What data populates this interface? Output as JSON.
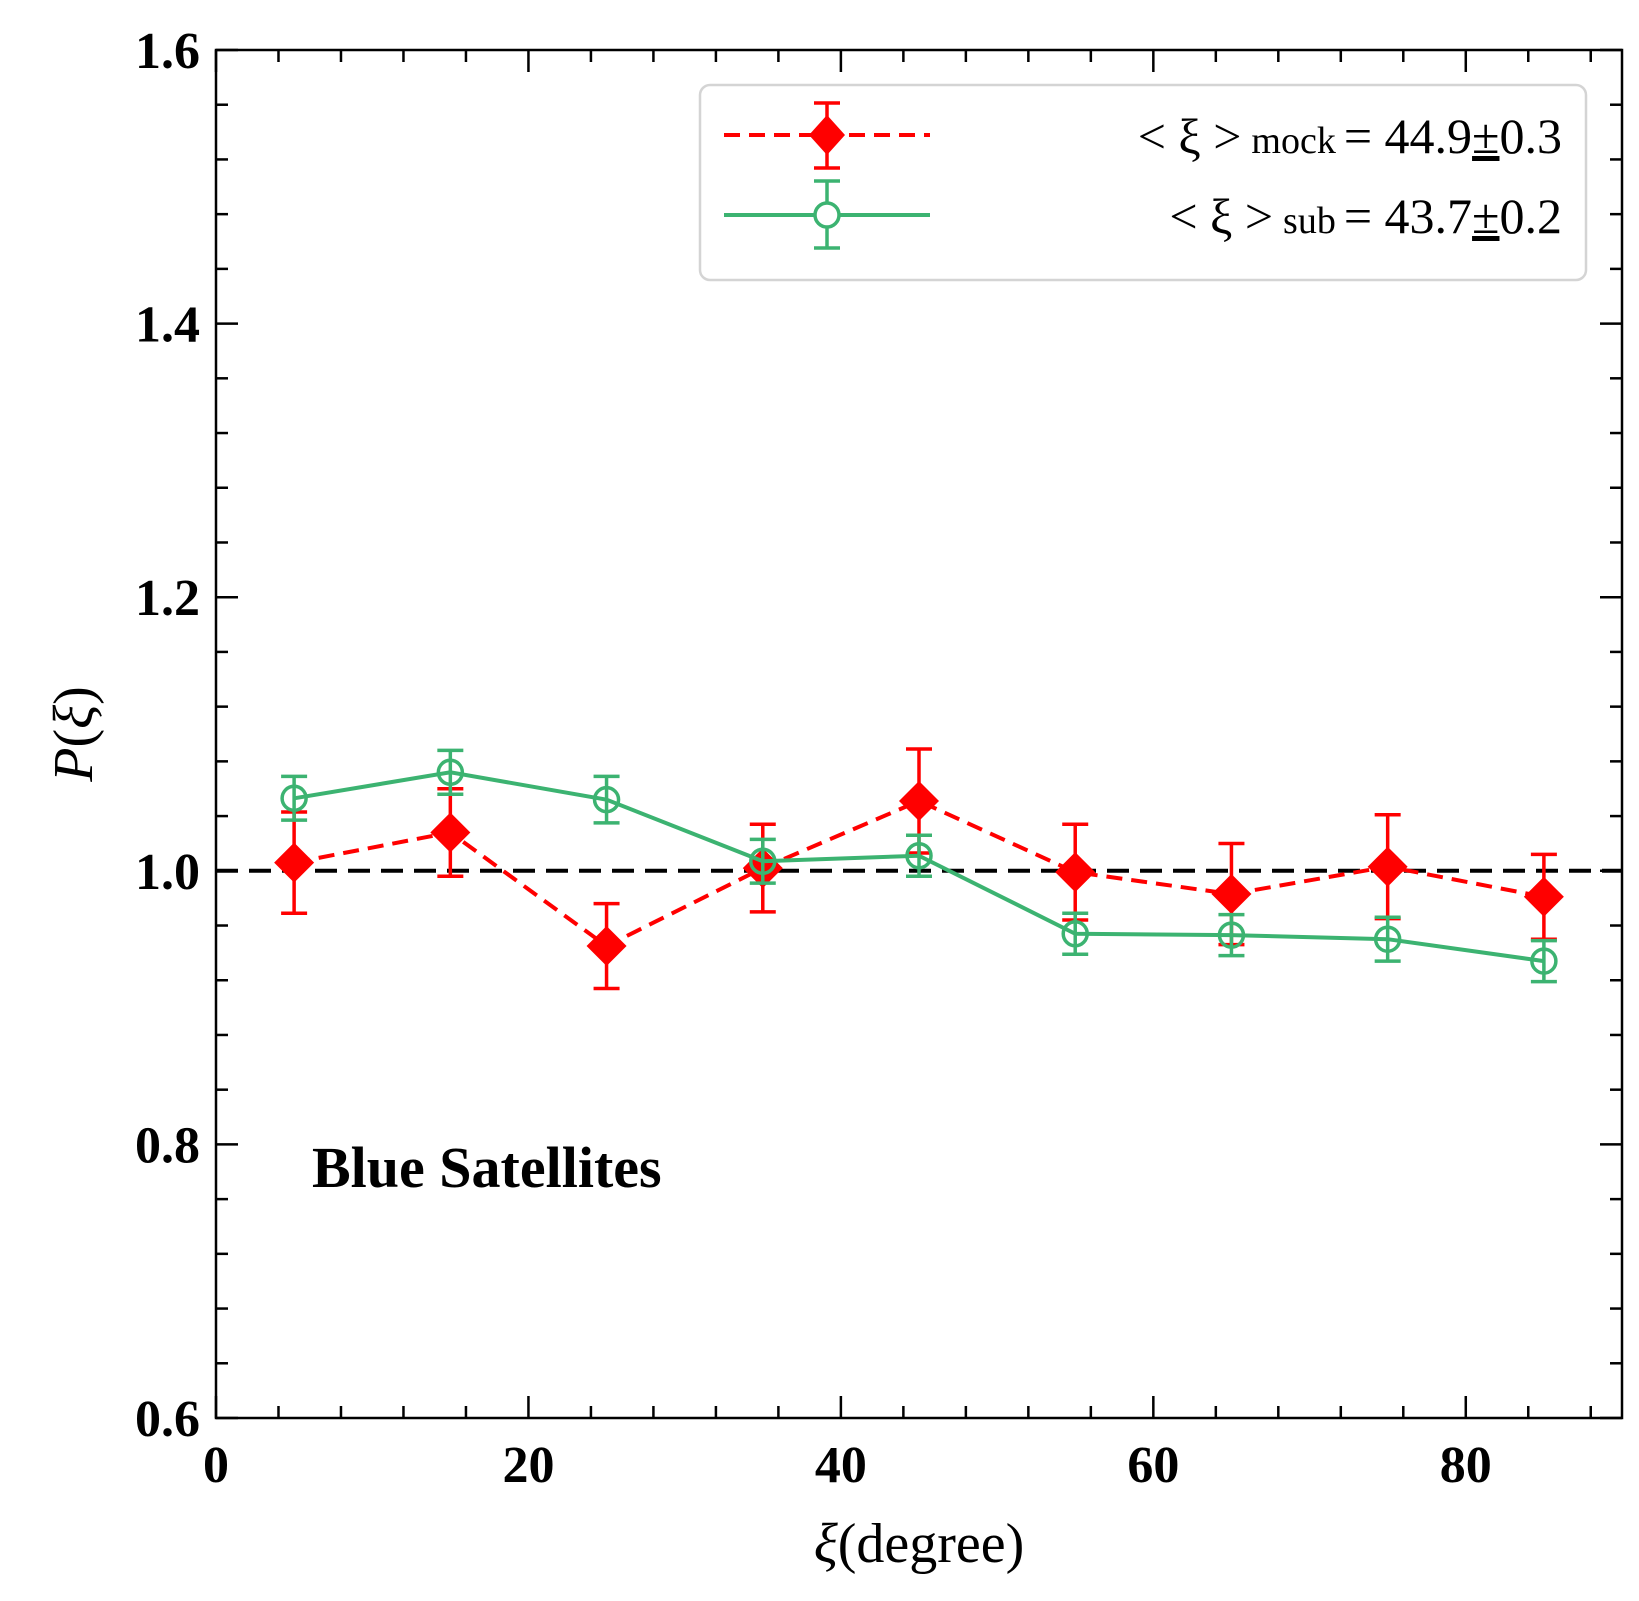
{
  "chart_data": {
    "type": "line",
    "title": "",
    "xlabel_symbol": "ξ",
    "xlabel_unit": "(degree)",
    "ylabel_symbol": "P",
    "ylabel_arg": "ξ",
    "xlim": [
      0,
      90
    ],
    "ylim": [
      0.6,
      1.6
    ],
    "x_ticks": [
      0,
      20,
      40,
      60,
      80
    ],
    "y_ticks": [
      0.6,
      0.8,
      1.0,
      1.2,
      1.4,
      1.6
    ],
    "x_tick_labels": [
      "0",
      "20",
      "40",
      "60",
      "80"
    ],
    "y_tick_labels": [
      "0.6",
      "0.8",
      "1.0",
      "1.2",
      "1.4",
      "1.6"
    ],
    "reference_line": {
      "y": 1.0,
      "color": "#000000",
      "style": "dashed"
    },
    "annotation": "Blue Satellites",
    "legend_position": "top-right",
    "x": [
      5,
      15,
      25,
      35,
      45,
      55,
      65,
      75,
      85
    ],
    "series": [
      {
        "name": "mock",
        "label_prefix": "< ξ >",
        "label_sub": "mock",
        "label_value": "= 44.9",
        "label_pm": "±",
        "label_err": "0.3",
        "color": "#ff0000",
        "line_style": "dashed",
        "marker": "filled-diamond",
        "values": [
          1.006,
          1.028,
          0.945,
          1.002,
          1.051,
          0.999,
          0.983,
          1.003,
          0.981
        ],
        "errors": [
          0.037,
          0.032,
          0.031,
          0.032,
          0.038,
          0.035,
          0.037,
          0.038,
          0.031
        ]
      },
      {
        "name": "sub",
        "label_prefix": "< ξ >",
        "label_sub": "sub",
        "label_value": "= 43.7",
        "label_pm": "±",
        "label_err": "0.2",
        "color": "#3cb371",
        "line_style": "solid",
        "marker": "open-circle",
        "values": [
          1.053,
          1.072,
          1.052,
          1.007,
          1.011,
          0.954,
          0.953,
          0.95,
          0.934
        ],
        "errors": [
          0.016,
          0.016,
          0.017,
          0.016,
          0.015,
          0.015,
          0.015,
          0.016,
          0.015
        ]
      }
    ]
  }
}
